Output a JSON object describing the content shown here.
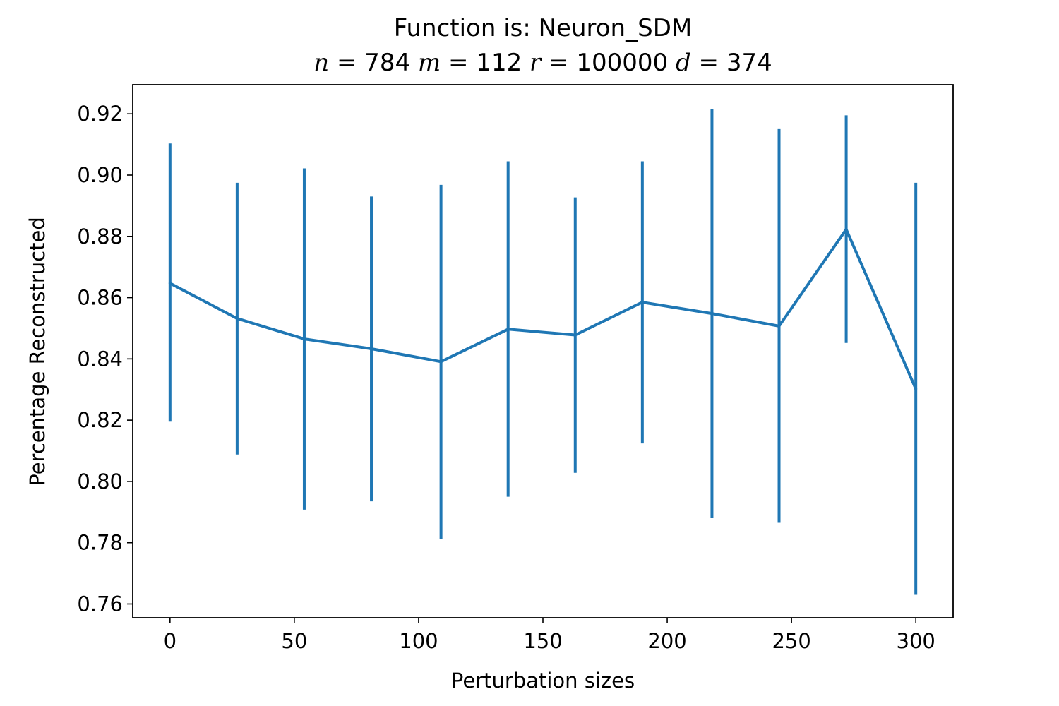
{
  "chart_data": {
    "type": "line",
    "title": "Function is: Neuron_SDM",
    "subtitle_parts": [
      {
        "var": "n",
        "value": "784"
      },
      {
        "var": "m",
        "value": "112"
      },
      {
        "var": "r",
        "value": "100000"
      },
      {
        "var": "d",
        "value": "374"
      }
    ],
    "xlabel": "Perturbation sizes",
    "ylabel": "Percentage Reconstructed",
    "xlim": [
      -15,
      315
    ],
    "ylim": [
      0.7555,
      0.9295
    ],
    "x_ticks": [
      0,
      50,
      100,
      150,
      200,
      250,
      300
    ],
    "y_ticks": [
      0.76,
      0.78,
      0.8,
      0.82,
      0.84,
      0.86,
      0.88,
      0.9,
      0.92
    ],
    "y_tick_labels": [
      "0.76",
      "0.78",
      "0.80",
      "0.82",
      "0.84",
      "0.86",
      "0.88",
      "0.90",
      "0.92"
    ],
    "grid": false,
    "series": [
      {
        "color": "#1f77b4",
        "x": [
          0,
          27,
          54,
          81,
          109,
          136,
          163,
          190,
          218,
          245,
          272,
          300
        ],
        "y": [
          0.8647,
          0.8532,
          0.8465,
          0.8433,
          0.8391,
          0.8497,
          0.8478,
          0.8585,
          0.8548,
          0.8507,
          0.8823,
          0.8302
        ],
        "err_low": [
          0.8195,
          0.8088,
          0.7908,
          0.7935,
          0.7813,
          0.795,
          0.8028,
          0.8124,
          0.788,
          0.7865,
          0.8452,
          0.763
        ],
        "err_high": [
          0.9103,
          0.8975,
          0.9022,
          0.893,
          0.8968,
          0.9045,
          0.8927,
          0.9045,
          0.9215,
          0.915,
          0.9195,
          0.8975
        ]
      }
    ]
  }
}
